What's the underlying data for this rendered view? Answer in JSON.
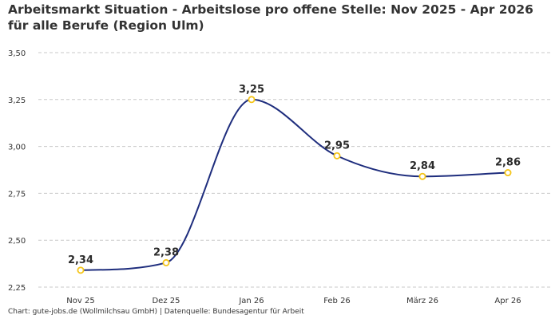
{
  "chart_data": {
    "type": "line",
    "title": "Arbeitsmarkt Situation - Arbeitslose pro offene Stelle: Nov 2025 - Apr 2026 für alle Berufe (Region Ulm)",
    "categories": [
      "Nov 25",
      "Dez 25",
      "Jan 26",
      "Feb 26",
      "März 26",
      "Apr 26"
    ],
    "values": [
      2.34,
      2.38,
      3.25,
      2.95,
      2.84,
      2.86
    ],
    "data_labels": [
      "2,34",
      "2,38",
      "3,25",
      "2,95",
      "2,84",
      "2,86"
    ],
    "ylim": [
      2.25,
      3.5
    ],
    "yticks": [
      2.25,
      2.5,
      2.75,
      3.0,
      3.25,
      3.5
    ],
    "ytick_labels": [
      "2,25",
      "2,50",
      "2,75",
      "3,00",
      "3,25",
      "3,50"
    ],
    "xlabel": "",
    "ylabel": "",
    "grid": "horizontal-dashed",
    "line_color": "#1e2d7d",
    "marker_color": "#f5c518"
  },
  "source": "Chart: gute-jobs.de (Wollmilchsau GmbH) | Datenquelle: Bundesagentur für Arbeit"
}
